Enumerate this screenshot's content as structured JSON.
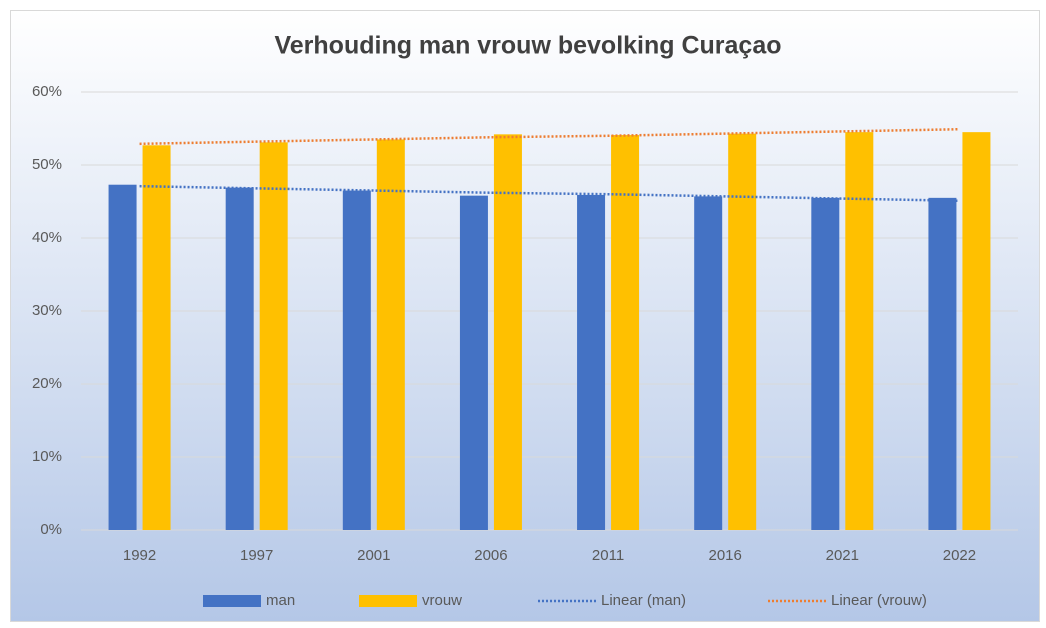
{
  "chart_data": {
    "type": "bar",
    "title": "Verhouding man vrouw bevolking Curaçao",
    "categories": [
      "1992",
      "1997",
      "2001",
      "2006",
      "2011",
      "2016",
      "2021",
      "2022"
    ],
    "series": [
      {
        "name": "man",
        "color": "#4472c4",
        "values": [
          47.3,
          46.9,
          46.5,
          45.8,
          45.9,
          45.7,
          45.5,
          45.5
        ]
      },
      {
        "name": "vrouw",
        "color": "#ffc000",
        "values": [
          52.7,
          53.1,
          53.5,
          54.2,
          54.1,
          54.3,
          54.5,
          54.5
        ]
      }
    ],
    "trendlines": [
      {
        "name": "Linear (man)",
        "color": "#4472c4",
        "values": [
          47.1,
          46.8,
          46.5,
          46.2,
          46.0,
          45.7,
          45.4,
          45.1
        ]
      },
      {
        "name": "Linear (vrouw)",
        "color": "#ed7d31",
        "values": [
          52.9,
          53.2,
          53.5,
          53.8,
          54.0,
          54.3,
          54.6,
          54.9
        ]
      }
    ],
    "ylim": [
      0,
      60
    ],
    "yticks": [
      {
        "value": 0,
        "label": "0%"
      },
      {
        "value": 10,
        "label": "10%"
      },
      {
        "value": 20,
        "label": "20%"
      },
      {
        "value": 30,
        "label": "30%"
      },
      {
        "value": 40,
        "label": "40%"
      },
      {
        "value": 50,
        "label": "50%"
      },
      {
        "value": 60,
        "label": "60%"
      }
    ],
    "grid": true,
    "legend": "bottom"
  }
}
